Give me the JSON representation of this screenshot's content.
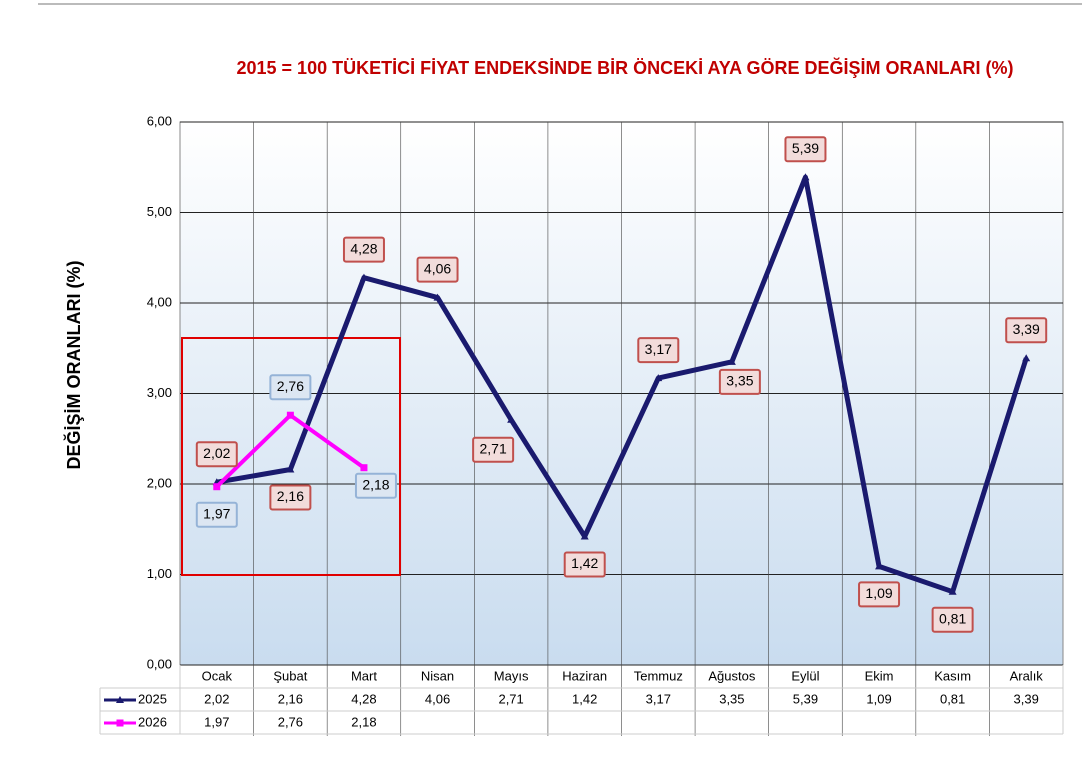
{
  "chart_data": {
    "type": "line",
    "title": "2015 = 100 TÜKETİCİ FİYAT ENDEKSİNDE BİR ÖNCEKİ AYA GÖRE DEĞİŞİM ORANLARI (%)",
    "y_label": "DEĞİŞİM ORANLARI (%)",
    "categories": [
      "Ocak",
      "Şubat",
      "Mart",
      "Nisan",
      "Mayıs",
      "Haziran",
      "Temmuz",
      "Ağustos",
      "Eylül",
      "Ekim",
      "Kasım",
      "Aralık"
    ],
    "series": [
      {
        "name": "2025",
        "color": "#1a1a6e",
        "values": [
          2.02,
          2.16,
          4.28,
          4.06,
          2.71,
          1.42,
          3.17,
          3.35,
          5.39,
          1.09,
          0.81,
          3.39
        ],
        "value_labels": [
          "2,02",
          "2,16",
          "4,28",
          "4,06",
          "2,71",
          "1,42",
          "3,17",
          "3,35",
          "5,39",
          "1,09",
          "0,81",
          "3,39"
        ]
      },
      {
        "name": "2026",
        "color": "#ff00ff",
        "values": [
          1.97,
          2.76,
          2.18,
          null,
          null,
          null,
          null,
          null,
          null,
          null,
          null,
          null
        ],
        "value_labels": [
          "1,97",
          "2,76",
          "2,18",
          null,
          null,
          null,
          null,
          null,
          null,
          null,
          null,
          null
        ]
      }
    ],
    "ylim": [
      0,
      6
    ],
    "yticks": [
      {
        "value": 0,
        "label": "0,00"
      },
      {
        "value": 1,
        "label": "1,00"
      },
      {
        "value": 2,
        "label": "2,00"
      },
      {
        "value": 3,
        "label": "3,00"
      },
      {
        "value": 4,
        "label": "4,00"
      },
      {
        "value": 5,
        "label": "5,00"
      },
      {
        "value": 6,
        "label": "6,00"
      }
    ],
    "grid": true
  }
}
